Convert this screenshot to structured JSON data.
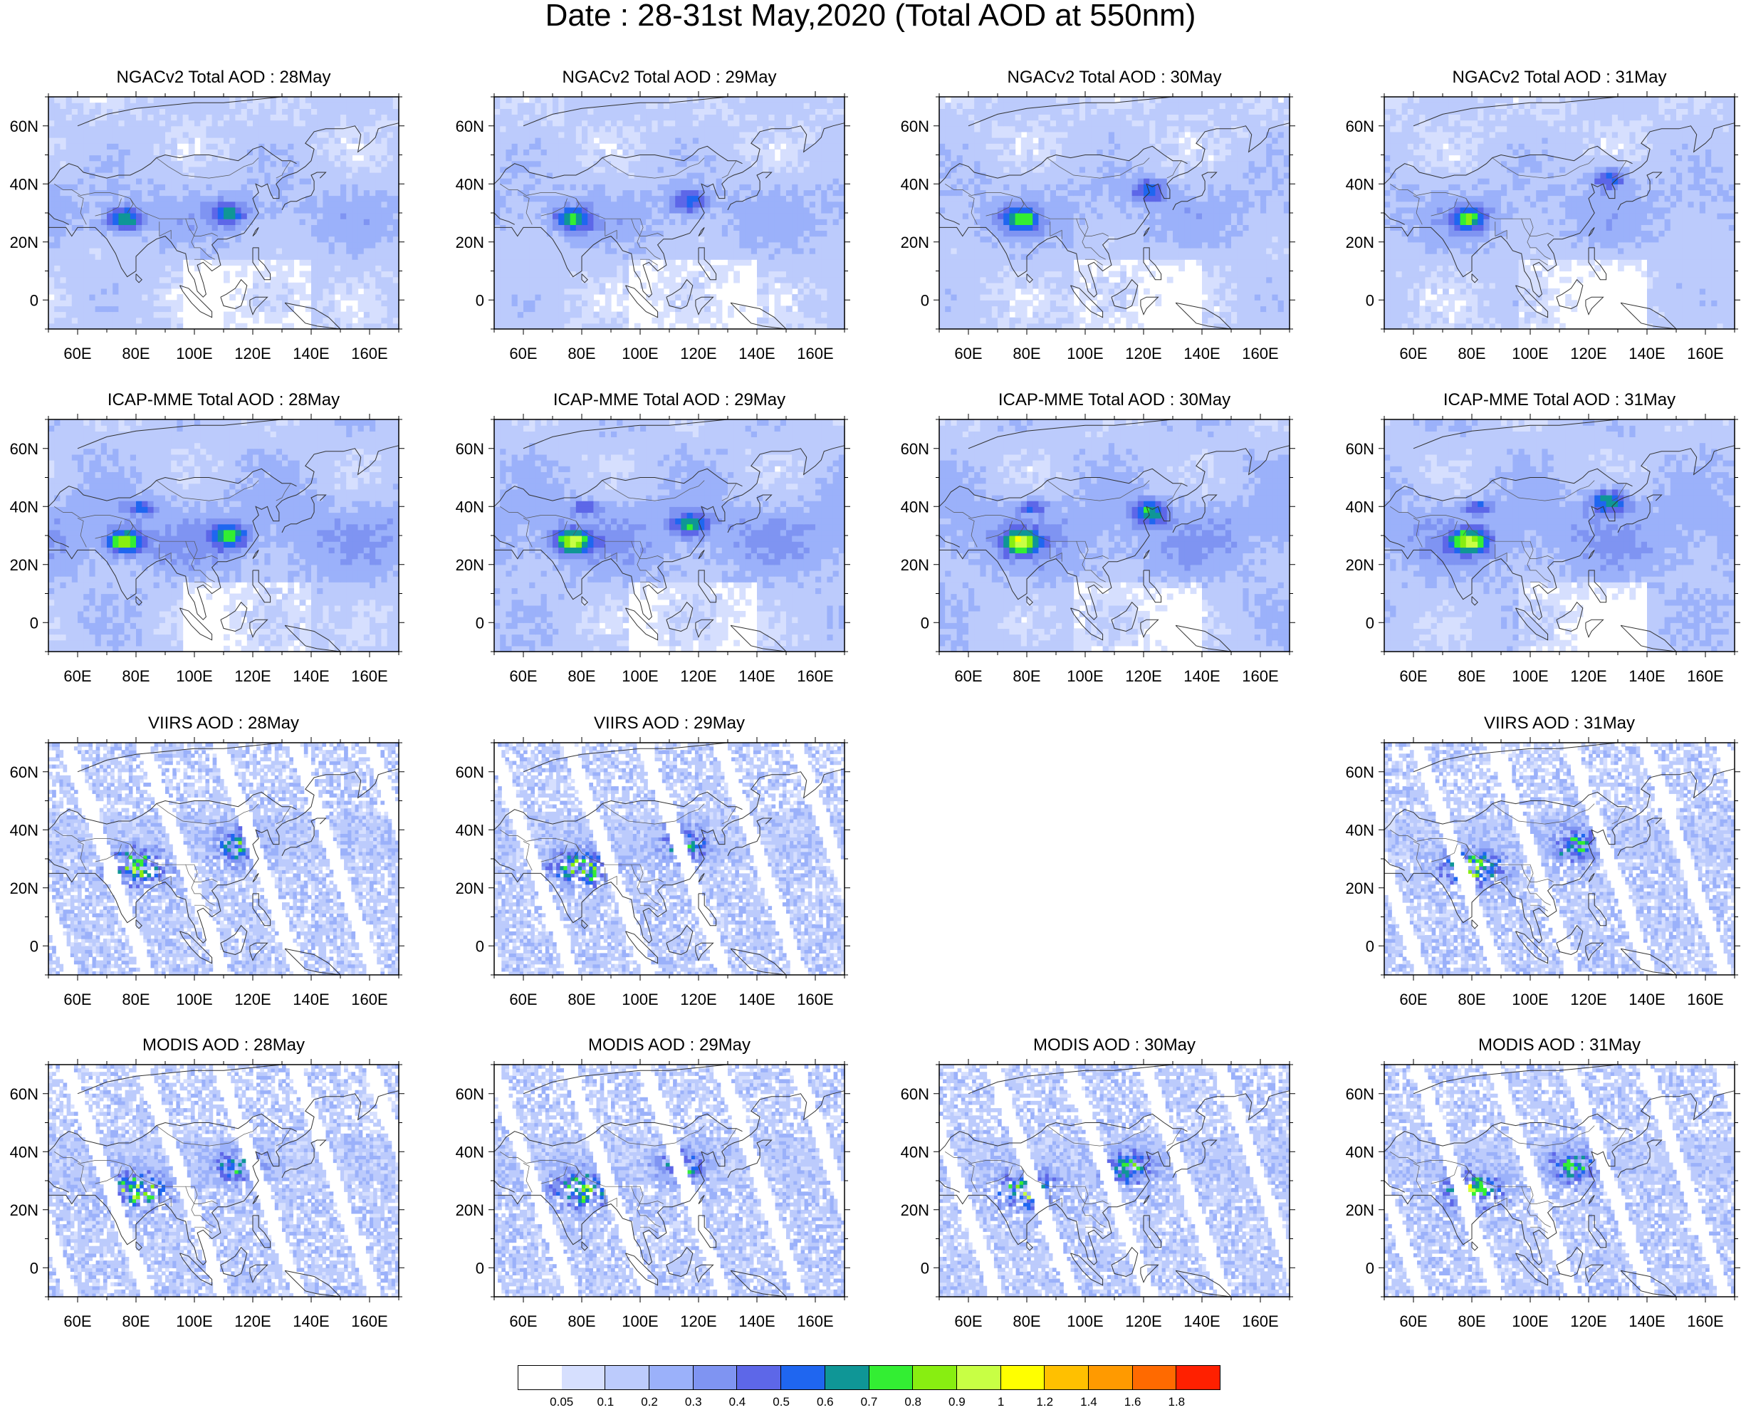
{
  "title": "Date : 28-31st May,2020 (Total AOD at 550nm)",
  "lat_ticks": [
    "60N",
    "40N",
    "20N",
    "0"
  ],
  "lon_ticks": [
    "60E",
    "80E",
    "100E",
    "120E",
    "140E",
    "160E"
  ],
  "rows": [
    {
      "product": "NGACv2",
      "panels": [
        {
          "date": "28May",
          "title": "NGACv2 Total AOD : 28May",
          "available": true
        },
        {
          "date": "29May",
          "title": "NGACv2 Total AOD : 29May",
          "available": true
        },
        {
          "date": "30May",
          "title": "NGACv2 Total AOD : 30May",
          "available": true
        },
        {
          "date": "31May",
          "title": "NGACv2 Total AOD : 31May",
          "available": true
        }
      ]
    },
    {
      "product": "ICAP-MME",
      "panels": [
        {
          "date": "28May",
          "title": "ICAP-MME Total AOD : 28May",
          "available": true
        },
        {
          "date": "29May",
          "title": "ICAP-MME Total AOD : 29May",
          "available": true
        },
        {
          "date": "30May",
          "title": "ICAP-MME Total AOD : 30May",
          "available": true
        },
        {
          "date": "31May",
          "title": "ICAP-MME Total AOD : 31May",
          "available": true
        }
      ]
    },
    {
      "product": "VIIRS",
      "panels": [
        {
          "date": "28May",
          "title": "VIIRS AOD : 28May",
          "available": true
        },
        {
          "date": "29May",
          "title": "VIIRS AOD : 29May",
          "available": true
        },
        {
          "date": "30May",
          "title": "",
          "available": false
        },
        {
          "date": "31May",
          "title": "VIIRS AOD : 31May",
          "available": true
        }
      ]
    },
    {
      "product": "MODIS",
      "panels": [
        {
          "date": "28May",
          "title": "MODIS AOD : 28May",
          "available": true
        },
        {
          "date": "29May",
          "title": "MODIS AOD : 29May",
          "available": true
        },
        {
          "date": "30May",
          "title": "MODIS AOD : 30May",
          "available": true
        },
        {
          "date": "31May",
          "title": "MODIS AOD : 31May",
          "available": true
        }
      ]
    }
  ],
  "colorbar": {
    "labels": [
      "0.05",
      "0.1",
      "0.2",
      "0.3",
      "0.4",
      "0.5",
      "0.6",
      "0.7",
      "0.8",
      "0.9",
      "1",
      "1.2",
      "1.4",
      "1.6",
      "1.8"
    ],
    "colors": [
      "#ffffff",
      "#d6dffe",
      "#bccbfc",
      "#9bb1fa",
      "#7f94f2",
      "#5d67e8",
      "#1f66f0",
      "#0f9696",
      "#33ee33",
      "#88ee11",
      "#c8ff44",
      "#ffff00",
      "#ffc000",
      "#ff9a00",
      "#ff6a00",
      "#ff2000"
    ]
  }
}
